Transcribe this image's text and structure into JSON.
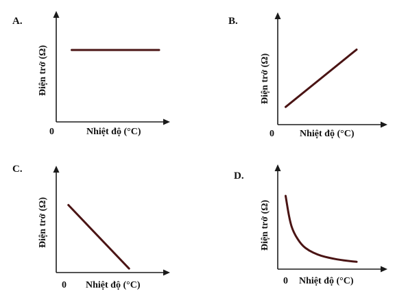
{
  "colors": {
    "curve": "#4a1414",
    "axis": "#1a1a1a"
  },
  "chart_data": [
    {
      "type": "line",
      "letter": "A.",
      "shape": "constant",
      "xlabel": "Nhiệt độ (°C)",
      "ylabel": "Điện trở (Ω)",
      "origin_label": "0",
      "x": [
        0.15,
        1.0
      ],
      "y": [
        0.75,
        0.75
      ]
    },
    {
      "type": "line",
      "letter": "B.",
      "shape": "increasing-linear",
      "xlabel": "Nhiệt độ (°C)",
      "ylabel": "Điện trở (Ω)",
      "origin_label": "0",
      "x": [
        0.1,
        1.0
      ],
      "y": [
        0.2,
        0.85
      ]
    },
    {
      "type": "line",
      "letter": "C.",
      "shape": "decreasing-linear",
      "xlabel": "Nhiệt độ (°C)",
      "ylabel": "Điện trở (Ω)",
      "origin_label": "0",
      "x": [
        0.15,
        0.9
      ],
      "y": [
        0.85,
        0.05
      ]
    },
    {
      "type": "line",
      "letter": "D.",
      "shape": "decreasing-hyperbolic",
      "xlabel": "Nhiệt độ (°C)",
      "ylabel": "Điện trở (Ω)",
      "origin_label": "0",
      "x": [
        0.1,
        0.15,
        0.2,
        0.3,
        0.4,
        0.5,
        0.6,
        0.7,
        0.8,
        0.9,
        1.0
      ],
      "y": [
        1.0,
        0.67,
        0.5,
        0.33,
        0.25,
        0.2,
        0.167,
        0.143,
        0.125,
        0.111,
        0.1
      ]
    }
  ]
}
